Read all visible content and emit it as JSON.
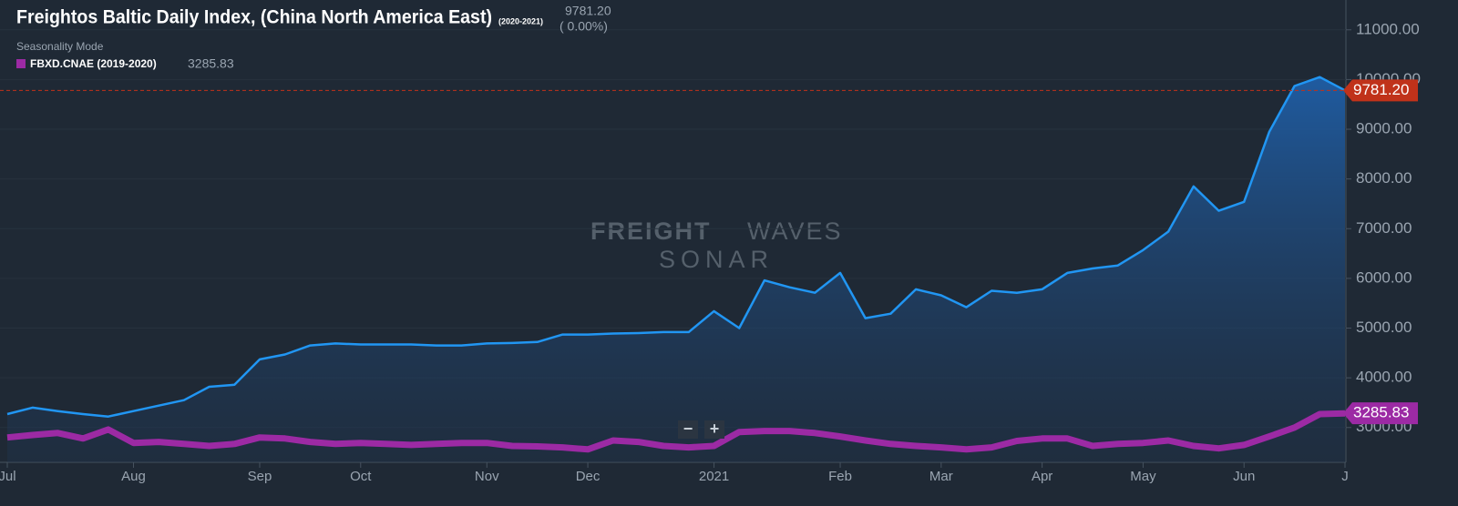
{
  "chart_data": {
    "type": "line",
    "title": "Freightos Baltic Daily Index, (China North America East)",
    "subtitle": "(2020-2021)",
    "change_label": "( 0.00%)",
    "mode_label": "Seasonality Mode",
    "watermark": {
      "brand_bold": "FREIGHT",
      "brand_light": "WAVES",
      "product": "SONAR"
    },
    "zoom_controls": [
      "−",
      "+"
    ],
    "categories": [
      "Jul",
      null,
      null,
      null,
      null,
      "Aug",
      null,
      null,
      null,
      null,
      "Sep",
      null,
      null,
      null,
      "Oct",
      null,
      null,
      null,
      null,
      "Nov",
      null,
      null,
      null,
      "Dec",
      null,
      null,
      null,
      null,
      "2021",
      null,
      null,
      null,
      null,
      "Feb",
      null,
      null,
      null,
      "Mar",
      null,
      null,
      null,
      "Apr",
      null,
      null,
      null,
      "May",
      null,
      null,
      null,
      "Jun",
      null,
      null,
      null,
      "J"
    ],
    "series": [
      {
        "color": "#2196f3",
        "area": true,
        "last_label": "9781.20",
        "values": [
          3270,
          3400,
          3330,
          3270,
          3220,
          3330,
          3440,
          3550,
          3820,
          3860,
          4370,
          4470,
          4650,
          4690,
          4670,
          4670,
          4670,
          4650,
          4650,
          4690,
          4700,
          4720,
          4870,
          4870,
          4890,
          4900,
          4920,
          4920,
          5340,
          5000,
          5960,
          5820,
          5710,
          6110,
          5200,
          5290,
          5780,
          5660,
          5420,
          5750,
          5710,
          5780,
          6110,
          6200,
          6260,
          6570,
          6940,
          7850,
          7360,
          7540,
          8950,
          9870,
          10050,
          9781.2
        ]
      },
      {
        "name": "FBXD.CNAE (2019-2020)",
        "color": "#9c2aa4",
        "last_label": "3285.83",
        "values": [
          2800,
          2850,
          2890,
          2780,
          2960,
          2690,
          2710,
          2670,
          2630,
          2670,
          2800,
          2780,
          2710,
          2670,
          2690,
          2670,
          2650,
          2670,
          2690,
          2690,
          2630,
          2620,
          2600,
          2560,
          2740,
          2710,
          2630,
          2600,
          2630,
          2910,
          2930,
          2930,
          2890,
          2820,
          2740,
          2670,
          2630,
          2600,
          2560,
          2600,
          2730,
          2780,
          2780,
          2630,
          2670,
          2690,
          2740,
          2630,
          2580,
          2650,
          2820,
          3000,
          3270,
          3285.83
        ]
      }
    ],
    "ylim": [
      2300,
      11600
    ],
    "yticks": [
      {
        "value": 3000,
        "label": "3000.00"
      },
      {
        "value": 4000,
        "label": "4000.00"
      },
      {
        "value": 5000,
        "label": "5000.00"
      },
      {
        "value": 6000,
        "label": "6000.00"
      },
      {
        "value": 7000,
        "label": "7000.00"
      },
      {
        "value": 8000,
        "label": "8000.00"
      },
      {
        "value": 9000,
        "label": "9000.00"
      },
      {
        "value": 10000,
        "label": "10000.00"
      },
      {
        "value": 11000,
        "label": "11000.00"
      }
    ],
    "grid": true
  }
}
